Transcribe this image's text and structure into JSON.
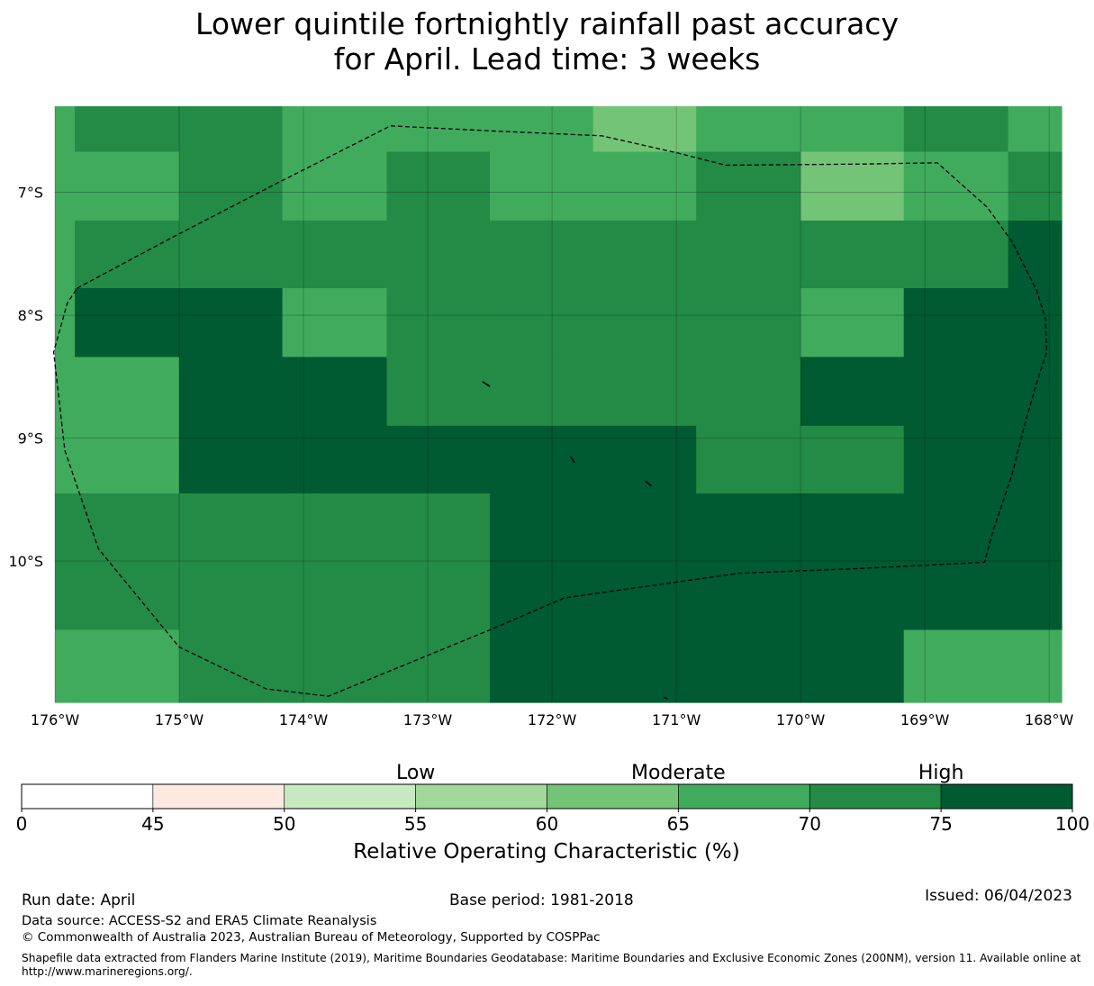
{
  "title": {
    "line1": "Lower quintile fortnightly rainfall past accuracy",
    "line2": "for April. Lead time: 3 weeks"
  },
  "map": {
    "lon_range": [
      -176,
      -167.9
    ],
    "lat_range": [
      -11.15,
      -6.3
    ],
    "lon_ticks": [
      {
        "value": -176,
        "label": "176°W"
      },
      {
        "value": -175,
        "label": "175°W"
      },
      {
        "value": -174,
        "label": "174°W"
      },
      {
        "value": -173,
        "label": "173°W"
      },
      {
        "value": -172,
        "label": "172°W"
      },
      {
        "value": -171,
        "label": "171°W"
      },
      {
        "value": -170,
        "label": "170°W"
      },
      {
        "value": -169,
        "label": "169°W"
      },
      {
        "value": -168,
        "label": "168°W"
      }
    ],
    "lat_ticks": [
      {
        "value": -7,
        "label": "7°S"
      },
      {
        "value": -8,
        "label": "8°S"
      },
      {
        "value": -9,
        "label": "9°S"
      },
      {
        "value": -10,
        "label": "10°S"
      }
    ],
    "grid_lon_edges": [
      -176,
      -175.84,
      -175,
      -174.17,
      -173.33,
      -172.5,
      -171.67,
      -170.84,
      -170,
      -169.17,
      -168.33,
      -167.9
    ],
    "grid_lat_edges": [
      -6.3,
      -6.67,
      -7.23,
      -7.78,
      -8.34,
      -8.9,
      -9.45,
      -10.01,
      -10.56,
      -11.15
    ],
    "roc_bins": [
      [
        "65-70",
        "70-75",
        "70-75",
        "65-70",
        "65-70",
        "65-70",
        "60-65",
        "65-70",
        "65-70",
        "70-75",
        "65-70"
      ],
      [
        "65-70",
        "65-70",
        "70-75",
        "65-70",
        "70-75",
        "65-70",
        "65-70",
        "70-75",
        "60-65",
        "65-70",
        "70-75"
      ],
      [
        "65-70",
        "70-75",
        "70-75",
        "70-75",
        "70-75",
        "70-75",
        "70-75",
        "70-75",
        "70-75",
        "70-75",
        "75-100"
      ],
      [
        "65-70",
        "75-100",
        "75-100",
        "65-70",
        "70-75",
        "70-75",
        "70-75",
        "70-75",
        "65-70",
        "75-100",
        "75-100"
      ],
      [
        "65-70",
        "65-70",
        "75-100",
        "75-100",
        "70-75",
        "70-75",
        "70-75",
        "70-75",
        "75-100",
        "75-100",
        "75-100"
      ],
      [
        "65-70",
        "65-70",
        "75-100",
        "75-100",
        "75-100",
        "75-100",
        "75-100",
        "70-75",
        "70-75",
        "75-100",
        "75-100"
      ],
      [
        "70-75",
        "70-75",
        "70-75",
        "70-75",
        "70-75",
        "75-100",
        "75-100",
        "75-100",
        "75-100",
        "75-100",
        "75-100"
      ],
      [
        "70-75",
        "70-75",
        "70-75",
        "70-75",
        "70-75",
        "75-100",
        "75-100",
        "75-100",
        "75-100",
        "75-100",
        "75-100"
      ],
      [
        "65-70",
        "65-70",
        "70-75",
        "70-75",
        "70-75",
        "75-100",
        "75-100",
        "75-100",
        "75-100",
        "65-70",
        "65-70"
      ]
    ],
    "boundary_eez": [
      [
        -175.82,
        -7.78
      ],
      [
        -175.08,
        -7.38
      ],
      [
        -174.2,
        -6.92
      ],
      [
        -173.3,
        -6.46
      ],
      [
        -172.5,
        -6.5
      ],
      [
        -171.6,
        -6.54
      ],
      [
        -170.99,
        -6.68
      ],
      [
        -170.6,
        -6.78
      ],
      [
        -169.5,
        -6.77
      ],
      [
        -168.9,
        -6.76
      ],
      [
        -168.5,
        -7.12
      ],
      [
        -168.3,
        -7.4
      ],
      [
        -168.2,
        -7.6
      ],
      [
        -168.1,
        -7.8
      ],
      [
        -168.03,
        -8.03
      ],
      [
        -168.02,
        -8.3
      ],
      [
        -168.1,
        -8.55
      ],
      [
        -168.2,
        -8.9
      ],
      [
        -168.3,
        -9.3
      ],
      [
        -168.45,
        -9.75
      ],
      [
        -168.52,
        -10.01
      ],
      [
        -169.5,
        -10.06
      ],
      [
        -170.5,
        -10.1
      ],
      [
        -171.9,
        -10.3
      ],
      [
        -172.5,
        -10.56
      ],
      [
        -173.8,
        -11.1
      ],
      [
        -174.3,
        -11.04
      ],
      [
        -175.0,
        -10.7
      ],
      [
        -175.65,
        -9.9
      ],
      [
        -175.92,
        -9.1
      ],
      [
        -176.01,
        -8.3
      ],
      [
        -175.9,
        -7.9
      ]
    ],
    "islands": [
      [
        [
          -172.56,
          -8.54
        ],
        [
          -172.5,
          -8.58
        ]
      ],
      [
        [
          -171.85,
          -9.15
        ],
        [
          -171.82,
          -9.2
        ]
      ],
      [
        [
          -171.25,
          -9.35
        ],
        [
          -171.2,
          -9.39
        ]
      ],
      [
        [
          -171.1,
          -11.11
        ],
        [
          -171.07,
          -11.12
        ]
      ]
    ]
  },
  "colorbar": {
    "ticks": [
      {
        "value": 0,
        "label": "0"
      },
      {
        "value": 45,
        "label": "45"
      },
      {
        "value": 50,
        "label": "50"
      },
      {
        "value": 55,
        "label": "55"
      },
      {
        "value": 60,
        "label": "60"
      },
      {
        "value": 65,
        "label": "65"
      },
      {
        "value": 70,
        "label": "70"
      },
      {
        "value": 75,
        "label": "75"
      },
      {
        "value": 100,
        "label": "100"
      }
    ],
    "bins": [
      {
        "range": "0-45",
        "color": "#ffffff"
      },
      {
        "range": "45-50",
        "color": "#fee9e0"
      },
      {
        "range": "50-55",
        "color": "#c7e9c0"
      },
      {
        "range": "55-60",
        "color": "#a1d99b"
      },
      {
        "range": "60-65",
        "color": "#73c476"
      },
      {
        "range": "65-70",
        "color": "#41ab5d"
      },
      {
        "range": "70-75",
        "color": "#238b45"
      },
      {
        "range": "75-100",
        "color": "#005a32"
      }
    ],
    "category_labels": [
      {
        "label": "Low",
        "at_bin": 3
      },
      {
        "label": "Moderate",
        "at_bin": 5
      },
      {
        "label": "High",
        "at_bin": 7
      }
    ],
    "axis_label": "Relative Operating Characteristic (%)"
  },
  "footer": {
    "run_date": "Run date: April",
    "base_period": "Base period: 1981-2018",
    "issued": "Issued: 06/04/2023",
    "data_source": "Data source: ACCESS-S2 and ERA5 Climate Reanalysis",
    "copyright": "© Commonwealth of Australia 2023, Australian Bureau of Meteorology, Supported by COSPPac",
    "shapefile_line1": "Shapefile data extracted from Flanders Marine Institute (2019), Maritime Boundaries Geodatabase: Maritime Boundaries and Exclusive Economic Zones (200NM), version 11. Available online at",
    "shapefile_line2": "http://www.marineregions.org/."
  }
}
